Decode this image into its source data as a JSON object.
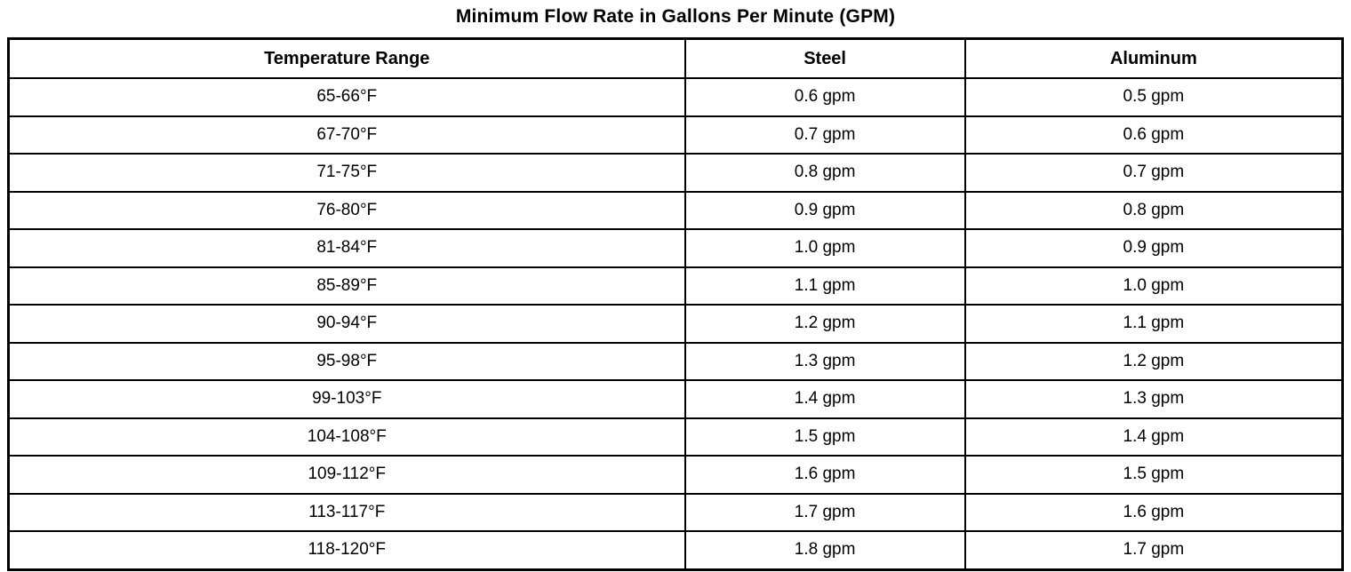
{
  "title": "Minimum Flow Rate in Gallons Per Minute (GPM)",
  "table": {
    "headers": [
      "Temperature Range",
      "Steel",
      "Aluminum"
    ],
    "rows": [
      [
        "65-66°F",
        "0.6 gpm",
        "0.5 gpm"
      ],
      [
        "67-70°F",
        "0.7 gpm",
        "0.6 gpm"
      ],
      [
        "71-75°F",
        "0.8 gpm",
        "0.7 gpm"
      ],
      [
        "76-80°F",
        "0.9 gpm",
        "0.8 gpm"
      ],
      [
        "81-84°F",
        "1.0 gpm",
        "0.9 gpm"
      ],
      [
        "85-89°F",
        "1.1 gpm",
        "1.0 gpm"
      ],
      [
        "90-94°F",
        "1.2 gpm",
        "1.1 gpm"
      ],
      [
        "95-98°F",
        "1.3 gpm",
        "1.2 gpm"
      ],
      [
        "99-103°F",
        "1.4 gpm",
        "1.3 gpm"
      ],
      [
        "104-108°F",
        "1.5 gpm",
        "1.4 gpm"
      ],
      [
        "109-112°F",
        "1.6 gpm",
        "1.5 gpm"
      ],
      [
        "113-117°F",
        "1.7 gpm",
        "1.6 gpm"
      ],
      [
        "118-120°F",
        "1.8 gpm",
        "1.7 gpm"
      ]
    ]
  }
}
